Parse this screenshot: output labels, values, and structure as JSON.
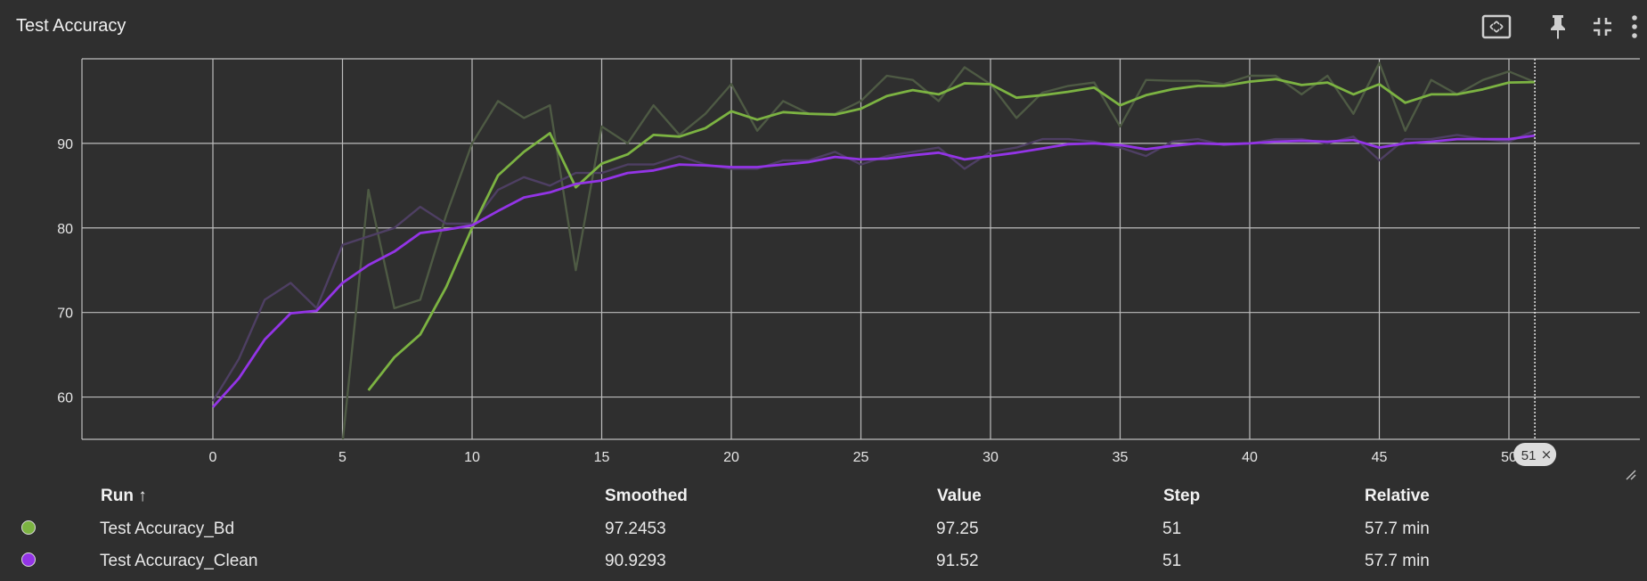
{
  "header": {
    "title": "Test Accuracy",
    "icons": [
      "fit-domain-icon",
      "pin-icon",
      "collapse-icon",
      "more-vert-icon"
    ]
  },
  "colors": {
    "background": "#2f2f2f",
    "bd": "#7cb342",
    "clean": "#9334e6",
    "bd_raw": "#4e5a44",
    "clean_raw": "#4e3f63"
  },
  "chart_data": {
    "type": "line",
    "title": "Test Accuracy",
    "xlabel": "",
    "ylabel": "",
    "xlim": [
      -5,
      55
    ],
    "ylim": [
      55,
      100
    ],
    "xticks": [
      0,
      5,
      10,
      15,
      20,
      25,
      30,
      35,
      40,
      45,
      50
    ],
    "yticks": [
      60,
      70,
      80,
      90
    ],
    "grid": true,
    "hover_step": 51,
    "hover_step_label": "51",
    "series": [
      {
        "name": "Test Accuracy_Bd",
        "color": "#7cb342",
        "smoothed": [
          null,
          null,
          null,
          null,
          null,
          null,
          60.8,
          64.7,
          67.4,
          73.0,
          80.0,
          86.2,
          89.0,
          91.2,
          84.8,
          87.6,
          88.7,
          91.0,
          90.8,
          91.8,
          93.8,
          92.8,
          93.7,
          93.5,
          93.4,
          94.1,
          95.6,
          96.3,
          95.8,
          97.1,
          97.0,
          95.4,
          95.7,
          96.1,
          96.6,
          94.5,
          95.7,
          96.4,
          96.8,
          96.8,
          97.3,
          97.6,
          96.9,
          97.2,
          95.8,
          97.0,
          94.8,
          95.8,
          95.8,
          96.4,
          97.2,
          97.2453
        ],
        "raw": [
          null,
          null,
          null,
          null,
          null,
          54.5,
          84.5,
          70.5,
          71.5,
          81.5,
          90.0,
          95.0,
          93.0,
          94.5,
          75.0,
          92.0,
          90.0,
          94.5,
          91.0,
          93.5,
          97.0,
          91.5,
          95.0,
          93.5,
          93.5,
          95.0,
          98.0,
          97.5,
          95.0,
          99.0,
          97.0,
          93.0,
          96.0,
          96.8,
          97.2,
          92.0,
          97.5,
          97.4,
          97.4,
          97.0,
          98.0,
          98.0,
          95.8,
          98.0,
          93.5,
          99.5,
          91.5,
          97.5,
          95.8,
          97.5,
          98.5,
          97.25
        ]
      },
      {
        "name": "Test Accuracy_Clean",
        "color": "#9334e6",
        "smoothed": [
          58.8,
          62.2,
          66.8,
          69.9,
          70.2,
          73.5,
          75.6,
          77.2,
          79.4,
          79.8,
          80.3,
          82.0,
          83.6,
          84.2,
          85.2,
          85.6,
          86.5,
          86.8,
          87.5,
          87.4,
          87.2,
          87.2,
          87.5,
          87.8,
          88.4,
          88.1,
          88.2,
          88.6,
          88.9,
          88.1,
          88.5,
          88.9,
          89.4,
          89.9,
          90.0,
          89.8,
          89.3,
          89.7,
          90.0,
          89.9,
          90.0,
          90.2,
          90.3,
          90.2,
          90.4,
          89.5,
          90.0,
          90.2,
          90.5,
          90.5,
          90.5,
          90.9293
        ],
        "raw": [
          59.5,
          64.5,
          71.5,
          73.5,
          70.5,
          78.0,
          79.0,
          80.0,
          82.5,
          80.5,
          80.5,
          84.5,
          86.0,
          85.0,
          86.5,
          86.5,
          87.5,
          87.5,
          88.5,
          87.5,
          87.0,
          87.0,
          88.0,
          88.0,
          89.0,
          87.5,
          88.5,
          89.0,
          89.5,
          87.0,
          89.0,
          89.5,
          90.5,
          90.5,
          90.2,
          89.5,
          88.5,
          90.2,
          90.5,
          89.8,
          90.0,
          90.5,
          90.5,
          90.0,
          90.8,
          88.0,
          90.5,
          90.5,
          91.0,
          90.5,
          90.2,
          91.52
        ]
      }
    ]
  },
  "table": {
    "columns": {
      "run": "Run ↑",
      "smoothed": "Smoothed",
      "value": "Value",
      "step": "Step",
      "relative": "Relative"
    },
    "rows": [
      {
        "run": "Test Accuracy_Bd",
        "smoothed": "97.2453",
        "value": "97.25",
        "step": "51",
        "relative": "57.7 min",
        "color": "#7cb342"
      },
      {
        "run": "Test Accuracy_Clean",
        "smoothed": "90.9293",
        "value": "91.52",
        "step": "51",
        "relative": "57.7 min",
        "color": "#9334e6"
      }
    ]
  }
}
